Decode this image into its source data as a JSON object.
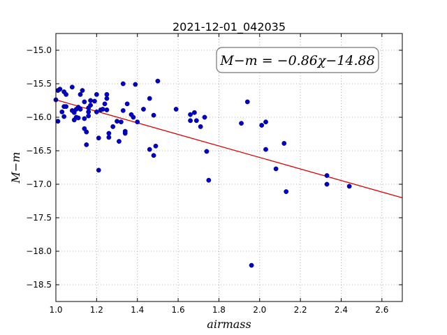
{
  "chart_data": {
    "type": "scatter",
    "title": "2021-12-01_042035",
    "xlabel": "airmass",
    "ylabel": "M−m",
    "xlim": [
      1.0,
      2.7
    ],
    "ylim": [
      -18.75,
      -14.75
    ],
    "y_inverted": true,
    "grid": true,
    "xticks": [
      1.0,
      1.2,
      1.4,
      1.6,
      1.8,
      2.0,
      2.2,
      2.4,
      2.6
    ],
    "xtick_labels": [
      "1.0",
      "1.2",
      "1.4",
      "1.6",
      "1.8",
      "2.0",
      "2.2",
      "2.4",
      "2.6"
    ],
    "yticks": [
      -15.0,
      -15.5,
      -16.0,
      -16.5,
      -17.0,
      -17.5,
      -18.0,
      -18.5
    ],
    "ytick_labels": [
      "−15.0",
      "−15.5",
      "−16.0",
      "−16.5",
      "−17.0",
      "−17.5",
      "−18.0",
      "−18.5"
    ],
    "annotation": "M−m = −0.86χ−14.88",
    "annotation_placement": "top-right",
    "point_color": "#0000cc",
    "fit_color": "#dd0000",
    "fit": {
      "slope": -0.86,
      "intercept": -14.88
    },
    "points": [
      [
        1.0,
        -15.74
      ],
      [
        1.01,
        -15.6
      ],
      [
        1.01,
        -16.06
      ],
      [
        1.02,
        -15.58
      ],
      [
        1.03,
        -15.92
      ],
      [
        1.04,
        -15.62
      ],
      [
        1.04,
        -15.99
      ],
      [
        1.04,
        -15.84
      ],
      [
        1.05,
        -15.66
      ],
      [
        1.05,
        -15.84
      ],
      [
        1.08,
        -15.55
      ],
      [
        1.08,
        -15.9
      ],
      [
        1.09,
        -16.04
      ],
      [
        1.09,
        -15.93
      ],
      [
        1.1,
        -15.88
      ],
      [
        1.1,
        -16.0
      ],
      [
        1.11,
        -15.85
      ],
      [
        1.11,
        -16.01
      ],
      [
        1.12,
        -15.88
      ],
      [
        1.12,
        -15.66
      ],
      [
        1.13,
        -15.6
      ],
      [
        1.14,
        -16.17
      ],
      [
        1.14,
        -16.02
      ],
      [
        1.14,
        -15.77
      ],
      [
        1.15,
        -16.41
      ],
      [
        1.15,
        -16.22
      ],
      [
        1.16,
        -15.86
      ],
      [
        1.16,
        -15.98
      ],
      [
        1.16,
        -15.92
      ],
      [
        1.17,
        -15.75
      ],
      [
        1.17,
        -15.82
      ],
      [
        1.19,
        -15.76
      ],
      [
        1.2,
        -15.92
      ],
      [
        1.2,
        -15.66
      ],
      [
        1.21,
        -16.31
      ],
      [
        1.21,
        -16.79
      ],
      [
        1.22,
        -15.89
      ],
      [
        1.23,
        -15.88
      ],
      [
        1.24,
        -15.8
      ],
      [
        1.25,
        -15.66
      ],
      [
        1.25,
        -15.72
      ],
      [
        1.25,
        -15.89
      ],
      [
        1.26,
        -16.24
      ],
      [
        1.26,
        -16.3
      ],
      [
        1.28,
        -16.14
      ],
      [
        1.3,
        -16.06
      ],
      [
        1.31,
        -16.36
      ],
      [
        1.32,
        -16.07
      ],
      [
        1.33,
        -15.9
      ],
      [
        1.33,
        -15.5
      ],
      [
        1.34,
        -16.21
      ],
      [
        1.34,
        -16.24
      ],
      [
        1.35,
        -15.8
      ],
      [
        1.37,
        -15.96
      ],
      [
        1.38,
        -16.0
      ],
      [
        1.39,
        -15.51
      ],
      [
        1.4,
        -16.07
      ],
      [
        1.43,
        -15.88
      ],
      [
        1.46,
        -16.48
      ],
      [
        1.46,
        -15.72
      ],
      [
        1.48,
        -15.97
      ],
      [
        1.48,
        -16.57
      ],
      [
        1.49,
        -16.43
      ],
      [
        1.5,
        -15.46
      ],
      [
        1.59,
        -15.88
      ],
      [
        1.66,
        -15.96
      ],
      [
        1.66,
        -16.05
      ],
      [
        1.68,
        -15.93
      ],
      [
        1.69,
        -16.05
      ],
      [
        1.71,
        -16.14
      ],
      [
        1.73,
        -16.0
      ],
      [
        1.74,
        -16.51
      ],
      [
        1.75,
        -16.94
      ],
      [
        1.91,
        -16.09
      ],
      [
        1.94,
        -15.77
      ],
      [
        1.96,
        -18.21
      ],
      [
        2.01,
        -16.12
      ],
      [
        2.03,
        -16.07
      ],
      [
        2.03,
        -16.48
      ],
      [
        2.08,
        -16.77
      ],
      [
        2.12,
        -16.39
      ],
      [
        2.13,
        -17.11
      ],
      [
        2.33,
        -16.87
      ],
      [
        2.33,
        -17.0
      ],
      [
        2.44,
        -17.03
      ]
    ]
  }
}
